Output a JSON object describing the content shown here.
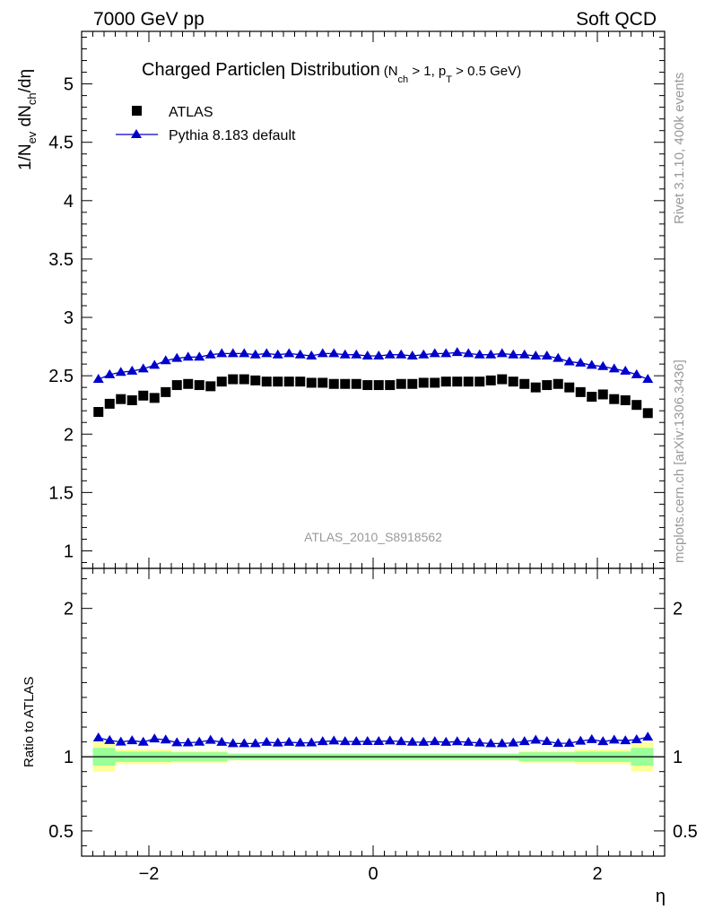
{
  "header": {
    "left": "7000 GeV pp",
    "right": "Soft QCD"
  },
  "side_labels": {
    "rivet": "Rivet 3.1.10,  400k events",
    "mcplots": "mcplots.cern.ch [arXiv:1306.3436]"
  },
  "colors": {
    "data": "#000000",
    "mc": "#0000cc",
    "band_inner": "#99ff99",
    "band_outer": "#ffff99",
    "watermark": "#999999"
  },
  "chart_data": {
    "type": "scatter",
    "title_main": "Charged Particle",
    "title_eta": "η",
    "title_rest": " Distribution",
    "title_cut": "(N",
    "title_cut_sub1": "ch",
    "title_cut_mid": " > 1, p",
    "title_cut_sub2": "T",
    "title_cut_end": " > 0.5 GeV)",
    "ylabel_prefix": "1/N",
    "ylabel_sub1": "ev",
    "ylabel_mid": " dN",
    "ylabel_sub2": "ch",
    "ylabel_end": "/dη",
    "xlabel": "η",
    "ratio_ylabel": "Ratio to ATLAS",
    "analysis": "ATLAS_2010_S8918562",
    "xlim": [
      -2.6,
      2.6
    ],
    "ylim": [
      0.85,
      5.45
    ],
    "ratio_ylim": [
      0.33,
      2.27
    ],
    "x_ticks": [
      -2,
      0,
      2
    ],
    "x_tick_labels": [
      "−2",
      "0",
      "2"
    ],
    "y_ticks": [
      1,
      1.5,
      2,
      2.5,
      3,
      3.5,
      4,
      4.5,
      5
    ],
    "y_tick_labels": [
      "1",
      "1.5",
      "2",
      "2.5",
      "3",
      "3.5",
      "4",
      "4.5",
      "5"
    ],
    "ratio_ticks": [
      0.5,
      1,
      2
    ],
    "ratio_tick_labels": [
      "0.5",
      "1",
      "2"
    ],
    "legend": [
      "ATLAS",
      "Pythia 8.183 default"
    ],
    "x": [
      -2.45,
      -2.35,
      -2.25,
      -2.15,
      -2.05,
      -1.95,
      -1.85,
      -1.75,
      -1.65,
      -1.55,
      -1.45,
      -1.35,
      -1.25,
      -1.15,
      -1.05,
      -0.95,
      -0.85,
      -0.75,
      -0.65,
      -0.55,
      -0.45,
      -0.35,
      -0.25,
      -0.15,
      -0.05,
      0.05,
      0.15,
      0.25,
      0.35,
      0.45,
      0.55,
      0.65,
      0.75,
      0.85,
      0.95,
      1.05,
      1.15,
      1.25,
      1.35,
      1.45,
      1.55,
      1.65,
      1.75,
      1.85,
      1.95,
      2.05,
      2.15,
      2.25,
      2.35,
      2.45
    ],
    "series": [
      {
        "name": "ATLAS",
        "values": [
          2.19,
          2.26,
          2.3,
          2.29,
          2.33,
          2.31,
          2.36,
          2.42,
          2.43,
          2.42,
          2.41,
          2.45,
          2.47,
          2.47,
          2.46,
          2.45,
          2.45,
          2.45,
          2.45,
          2.44,
          2.44,
          2.43,
          2.43,
          2.43,
          2.42,
          2.42,
          2.42,
          2.43,
          2.43,
          2.44,
          2.44,
          2.45,
          2.45,
          2.45,
          2.45,
          2.46,
          2.47,
          2.45,
          2.43,
          2.4,
          2.42,
          2.43,
          2.4,
          2.36,
          2.32,
          2.34,
          2.3,
          2.29,
          2.25,
          2.18
        ]
      },
      {
        "name": "Pythia 8.183 default",
        "values": [
          2.47,
          2.51,
          2.53,
          2.54,
          2.56,
          2.59,
          2.63,
          2.65,
          2.66,
          2.66,
          2.68,
          2.69,
          2.69,
          2.69,
          2.68,
          2.69,
          2.68,
          2.69,
          2.68,
          2.67,
          2.69,
          2.69,
          2.68,
          2.68,
          2.67,
          2.67,
          2.68,
          2.68,
          2.67,
          2.68,
          2.69,
          2.69,
          2.7,
          2.69,
          2.68,
          2.68,
          2.69,
          2.68,
          2.68,
          2.67,
          2.67,
          2.65,
          2.62,
          2.61,
          2.59,
          2.58,
          2.56,
          2.54,
          2.51,
          2.47
        ]
      }
    ],
    "band_edges": [
      -2.5,
      -2.3,
      -1.8,
      -1.3,
      1.3,
      1.8,
      2.3,
      2.5
    ],
    "band_inner_half": [
      0.06,
      0.035,
      0.03,
      0.02,
      0.03,
      0.035,
      0.06
    ],
    "band_outer_half": [
      0.1,
      0.05,
      0.04,
      0.025,
      0.04,
      0.05,
      0.1
    ]
  }
}
